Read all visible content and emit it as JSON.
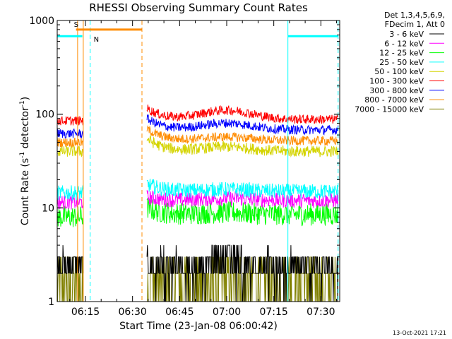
{
  "chart_data": {
    "type": "line",
    "title": "RHESSI Observing Summary Count Rates",
    "xlabel": "Start Time (23-Jan-08 06:00:42)",
    "ylabel_main": "Count Rate (s",
    "ylabel_sup1": "-1",
    "ylabel_mid": " detector",
    "ylabel_sup2": "-1",
    "ylabel_end": ")",
    "y_scale": "log",
    "ylim": [
      1,
      1000
    ],
    "xlim_minutes": [
      6.0,
      96.0
    ],
    "x_ticks": [
      {
        "label": "06:15",
        "minute": 15
      },
      {
        "label": "06:30",
        "minute": 30
      },
      {
        "label": "06:45",
        "minute": 45
      },
      {
        "label": "07:00",
        "minute": 60
      },
      {
        "label": "07:15",
        "minute": 75
      },
      {
        "label": "07:30",
        "minute": 90
      }
    ],
    "y_ticks": [
      {
        "label": "1",
        "value": 1
      },
      {
        "label": "10",
        "value": 10
      },
      {
        "label": "100",
        "value": 100
      },
      {
        "label": "1000",
        "value": 1000
      }
    ],
    "legend_header": [
      "Det 1,3,4,5,6,9,",
      "FDecim 1, Att 0"
    ],
    "legend_position": "top-right, outside plot",
    "series": [
      {
        "name": "3 - 6 keV",
        "color": "#000000"
      },
      {
        "name": "6 - 12 keV",
        "color": "#ff00ff"
      },
      {
        "name": "12 - 25 keV",
        "color": "#00ff00"
      },
      {
        "name": "25 - 50 keV",
        "color": "#00ffff"
      },
      {
        "name": "50 - 100 keV",
        "color": "#d4d400"
      },
      {
        "name": "100 - 300 keV",
        "color": "#ff0000"
      },
      {
        "name": "300 - 800 keV",
        "color": "#0000ff"
      },
      {
        "name": "800 - 7000 keV",
        "color": "#ff8c00"
      },
      {
        "name": "7000 - 15000 keV",
        "color": "#808000"
      }
    ],
    "segments": [
      {
        "x_range": [
          6.0,
          14.3
        ],
        "levels": [
          {
            "series": 5,
            "mean": 85,
            "noise": 0.05
          },
          {
            "series": 6,
            "mean": 62,
            "noise": 0.05
          },
          {
            "series": 7,
            "mean": 50,
            "noise": 0.05
          },
          {
            "series": 4,
            "mean": 40,
            "noise": 0.06
          },
          {
            "series": 3,
            "mean": 14.5,
            "noise": 0.08
          },
          {
            "series": 1,
            "mean": 11.5,
            "noise": 0.08
          },
          {
            "series": 2,
            "mean": 8,
            "noise": 0.12
          },
          {
            "series": 0,
            "mean": 2.6,
            "noise": 0.18
          },
          {
            "series": 8,
            "mean": 1.6,
            "noise": 0.35
          }
        ]
      },
      {
        "x_range": [
          34.6,
          95.5
        ],
        "levels": [
          {
            "series": 5,
            "mean": 88,
            "noise": 0.05,
            "start": 115,
            "bump": 1.25
          },
          {
            "series": 6,
            "mean": 68,
            "noise": 0.05,
            "start": 90,
            "bump": 1.18
          },
          {
            "series": 7,
            "mean": 52,
            "noise": 0.05,
            "start": 70,
            "bump": 1.1
          },
          {
            "series": 4,
            "mean": 40,
            "noise": 0.06,
            "start": 55,
            "bump": 1.12
          },
          {
            "series": 3,
            "mean": 15,
            "noise": 0.08,
            "start": 18,
            "bump": 1.05
          },
          {
            "series": 1,
            "mean": 12,
            "noise": 0.08,
            "start": 13,
            "bump": 1.05
          },
          {
            "series": 2,
            "mean": 8.5,
            "noise": 0.12,
            "start": 10,
            "bump": 1.05
          },
          {
            "series": 0,
            "mean": 3,
            "noise": 0.25,
            "start": 3,
            "bump": 1.2
          },
          {
            "series": 8,
            "mean": 1.7,
            "noise": 0.35,
            "start": 1.7,
            "bump": 1.0
          }
        ]
      }
    ],
    "annotations": {
      "saa_label": "S",
      "night_label": "N",
      "saa_color": "#ff8c00",
      "night_color": "#00ffff",
      "saa_bar": {
        "x": [
          12.0,
          33.0
        ],
        "y": 800
      },
      "night_bars": [
        {
          "x": [
            6.0,
            14.0
          ],
          "y": 680
        },
        {
          "x": [
            79.5,
            95.5
          ],
          "y": 680
        }
      ],
      "orange_solid": [
        12.5,
        14.3
      ],
      "orange_dashed": [
        33.0
      ],
      "cyan_solid": [
        6.0,
        79.5
      ],
      "cyan_dashed": [
        16.5,
        95.5
      ]
    }
  },
  "footer": {
    "timestamp": "13-Oct-2021 17:21"
  }
}
